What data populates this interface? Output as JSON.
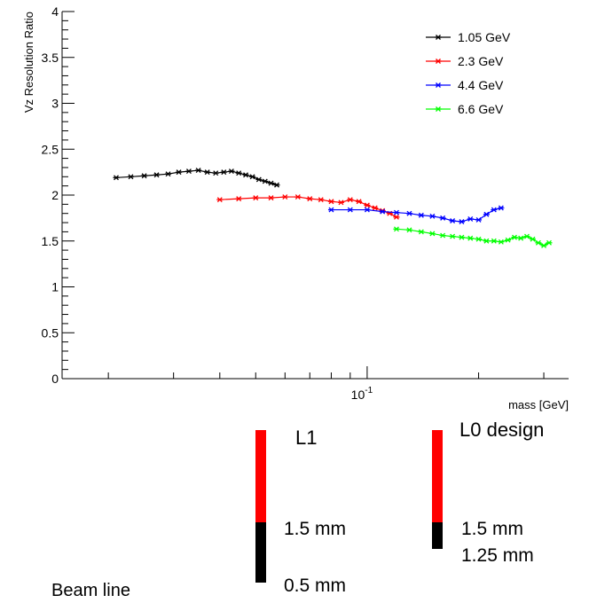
{
  "chart_data": {
    "type": "scatter",
    "title": "",
    "xlabel": "mass [GeV]",
    "ylabel": "Vz Resolution Ratio",
    "x_scale": "log",
    "xlim": [
      0.015,
      0.35
    ],
    "ylim": [
      0,
      4
    ],
    "x_ticks": [
      {
        "value": 0.1,
        "label": "10^-1",
        "base": "10",
        "exp": "-1"
      }
    ],
    "y_ticks": [
      {
        "value": 0,
        "label": "0"
      },
      {
        "value": 0.5,
        "label": "0.5"
      },
      {
        "value": 1,
        "label": "1"
      },
      {
        "value": 1.5,
        "label": "1.5"
      },
      {
        "value": 2,
        "label": "2"
      },
      {
        "value": 2.5,
        "label": "2.5"
      },
      {
        "value": 3,
        "label": "3"
      },
      {
        "value": 3.5,
        "label": "3.5"
      },
      {
        "value": 4,
        "label": "4"
      }
    ],
    "grid": false,
    "legend_position": "top-right",
    "series": [
      {
        "name": "1.05 GeV",
        "color": "#000000",
        "points": [
          [
            0.021,
            2.19
          ],
          [
            0.023,
            2.2
          ],
          [
            0.025,
            2.21
          ],
          [
            0.027,
            2.22
          ],
          [
            0.029,
            2.23
          ],
          [
            0.031,
            2.25
          ],
          [
            0.033,
            2.26
          ],
          [
            0.035,
            2.27
          ],
          [
            0.037,
            2.25
          ],
          [
            0.039,
            2.24
          ],
          [
            0.041,
            2.25
          ],
          [
            0.043,
            2.26
          ],
          [
            0.045,
            2.24
          ],
          [
            0.047,
            2.22
          ],
          [
            0.049,
            2.2
          ],
          [
            0.051,
            2.17
          ],
          [
            0.053,
            2.15
          ],
          [
            0.055,
            2.13
          ],
          [
            0.057,
            2.11
          ]
        ]
      },
      {
        "name": "2.3 GeV",
        "color": "#ff0000",
        "points": [
          [
            0.04,
            1.95
          ],
          [
            0.045,
            1.96
          ],
          [
            0.05,
            1.97
          ],
          [
            0.055,
            1.97
          ],
          [
            0.06,
            1.98
          ],
          [
            0.065,
            1.98
          ],
          [
            0.07,
            1.96
          ],
          [
            0.075,
            1.95
          ],
          [
            0.08,
            1.93
          ],
          [
            0.085,
            1.92
          ],
          [
            0.09,
            1.95
          ],
          [
            0.095,
            1.93
          ],
          [
            0.1,
            1.89
          ],
          [
            0.105,
            1.86
          ],
          [
            0.11,
            1.83
          ],
          [
            0.115,
            1.8
          ],
          [
            0.12,
            1.76
          ]
        ]
      },
      {
        "name": "4.4 GeV",
        "color": "#0000ff",
        "points": [
          [
            0.08,
            1.84
          ],
          [
            0.09,
            1.84
          ],
          [
            0.1,
            1.84
          ],
          [
            0.11,
            1.82
          ],
          [
            0.12,
            1.81
          ],
          [
            0.13,
            1.8
          ],
          [
            0.14,
            1.78
          ],
          [
            0.15,
            1.77
          ],
          [
            0.16,
            1.75
          ],
          [
            0.17,
            1.72
          ],
          [
            0.18,
            1.71
          ],
          [
            0.19,
            1.74
          ],
          [
            0.2,
            1.73
          ],
          [
            0.21,
            1.79
          ],
          [
            0.22,
            1.84
          ],
          [
            0.23,
            1.86
          ]
        ]
      },
      {
        "name": "6.6 GeV",
        "color": "#00ff00",
        "points": [
          [
            0.12,
            1.63
          ],
          [
            0.13,
            1.62
          ],
          [
            0.14,
            1.6
          ],
          [
            0.15,
            1.58
          ],
          [
            0.16,
            1.56
          ],
          [
            0.17,
            1.55
          ],
          [
            0.18,
            1.54
          ],
          [
            0.19,
            1.53
          ],
          [
            0.2,
            1.52
          ],
          [
            0.21,
            1.5
          ],
          [
            0.22,
            1.5
          ],
          [
            0.23,
            1.49
          ],
          [
            0.24,
            1.51
          ],
          [
            0.25,
            1.54
          ],
          [
            0.26,
            1.53
          ],
          [
            0.27,
            1.55
          ],
          [
            0.28,
            1.52
          ],
          [
            0.29,
            1.48
          ],
          [
            0.3,
            1.45
          ],
          [
            0.31,
            1.48
          ]
        ]
      }
    ]
  },
  "diagram": {
    "l1": {
      "title": "L1",
      "top_label": "1.5 mm",
      "bottom_label": "0.5 mm"
    },
    "l0": {
      "title": "L0 design",
      "top_label": "1.5 mm",
      "bottom_label": "1.25 mm"
    },
    "beam_line": "Beam line",
    "colors": {
      "sensor": "#ff0000",
      "dead": "#000000"
    }
  }
}
